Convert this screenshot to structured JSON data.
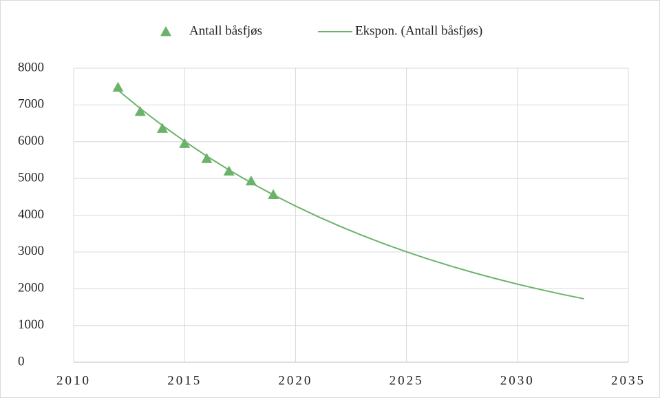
{
  "chart_data": {
    "type": "scatter",
    "legend": "top",
    "grid": true,
    "xlim": [
      2010,
      2035
    ],
    "xticks": [
      2010,
      2015,
      2020,
      2025,
      2030,
      2035
    ],
    "ylim": [
      0,
      8000
    ],
    "yticks": [
      0,
      1000,
      2000,
      3000,
      4000,
      5000,
      6000,
      7000,
      8000
    ],
    "series": [
      {
        "name": "Antall båsfjøs",
        "type": "scatter",
        "marker": "triangle",
        "color": "#6bb36b",
        "x": [
          2012,
          2013,
          2014,
          2015,
          2016,
          2017,
          2018,
          2019
        ],
        "values": [
          7480,
          6820,
          6360,
          5950,
          5540,
          5200,
          4930,
          4560
        ]
      },
      {
        "name": "Ekspon. (Antall båsfjøs)",
        "type": "line",
        "color": "#6bb36b",
        "x": [
          2012,
          2013,
          2014,
          2015,
          2016,
          2017,
          2018,
          2019,
          2020,
          2021,
          2022,
          2023,
          2024,
          2025,
          2026,
          2027,
          2028,
          2029,
          2030,
          2031,
          2032,
          2033
        ],
        "values": [
          7400,
          6904,
          6442,
          6010,
          5607,
          5232,
          4881,
          4554,
          4249,
          3964,
          3699,
          3451,
          3220,
          3004,
          2803,
          2615,
          2440,
          2276,
          2124,
          1982,
          1849,
          1725
        ]
      }
    ]
  }
}
